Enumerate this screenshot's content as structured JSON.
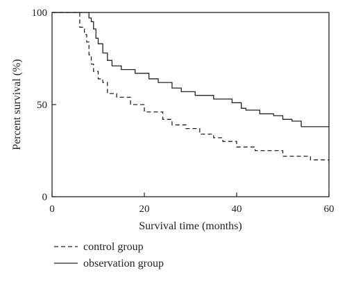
{
  "chart_data": {
    "type": "line",
    "title": "",
    "xlabel": "Survival time (months)",
    "ylabel": "Percent survival (%)",
    "xlim": [
      0,
      60
    ],
    "ylim": [
      0,
      100
    ],
    "xticks": [
      0,
      20,
      40,
      60
    ],
    "yticks": [
      0,
      50,
      100
    ],
    "grid": false,
    "legend_position": "bottom-left",
    "series": [
      {
        "name": "control group",
        "style": "dashed",
        "color": "#222222",
        "x": [
          0,
          6,
          7,
          7.5,
          8,
          8.5,
          9,
          10,
          11,
          12,
          14,
          17,
          20,
          24,
          26,
          29,
          32,
          35,
          37,
          40,
          44,
          50,
          56,
          60
        ],
        "y": [
          100,
          92,
          88,
          84,
          77,
          72,
          68,
          64,
          62,
          56,
          54,
          50,
          46,
          42,
          39,
          37,
          34,
          32,
          30,
          27,
          25,
          22,
          20,
          19
        ]
      },
      {
        "name": "observation group",
        "style": "solid",
        "color": "#222222",
        "x": [
          0,
          8,
          8.5,
          9,
          9.5,
          10,
          11,
          12,
          13,
          15,
          18,
          21,
          23,
          26,
          28,
          31,
          35,
          39,
          41,
          42,
          45,
          48,
          50,
          52,
          54,
          60
        ],
        "y": [
          100,
          97,
          95,
          91,
          86,
          83,
          78,
          74,
          71,
          69,
          67,
          64,
          62,
          59,
          57,
          55,
          53,
          51,
          48,
          47,
          45,
          44,
          42,
          41,
          38,
          38
        ]
      }
    ]
  }
}
